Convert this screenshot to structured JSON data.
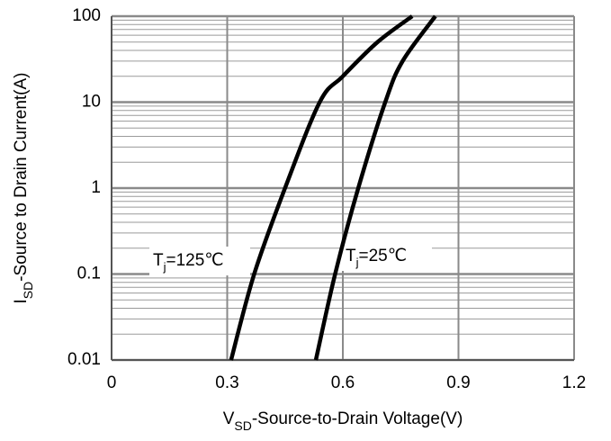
{
  "chart_data": {
    "type": "line",
    "log_y": true,
    "grid": true,
    "minor_grid": true,
    "xlabel": {
      "main": "V",
      "sub": "SD",
      "rest": "-Source-to-Drain Voltage(V)"
    },
    "ylabel": {
      "main": "I",
      "sub": "SD",
      "rest": "-Source to Drain Current(A)"
    },
    "xlim": [
      0,
      1.2
    ],
    "xticks": [
      0,
      0.3,
      0.6,
      0.9,
      1.2
    ],
    "ylim": [
      0.01,
      100
    ],
    "yticks": [
      0.01,
      0.1,
      1,
      10,
      100
    ],
    "series": [
      {
        "color": "#000000",
        "x": [
          0.31,
          0.37,
          0.45,
          0.54,
          0.6,
          0.69,
          0.78
        ],
        "y": [
          0.01,
          0.1,
          1,
          10,
          20,
          50,
          100
        ]
      },
      {
        "color": "#000000",
        "x": [
          0.53,
          0.58,
          0.64,
          0.71,
          0.755,
          0.84
        ],
        "y": [
          0.01,
          0.1,
          1,
          10,
          30,
          100
        ]
      }
    ],
    "annotations": [
      {
        "main": "T",
        "sub": "j",
        "rest": "=125℃"
      },
      {
        "main": "T",
        "sub": "j",
        "rest": "=25℃"
      }
    ]
  }
}
